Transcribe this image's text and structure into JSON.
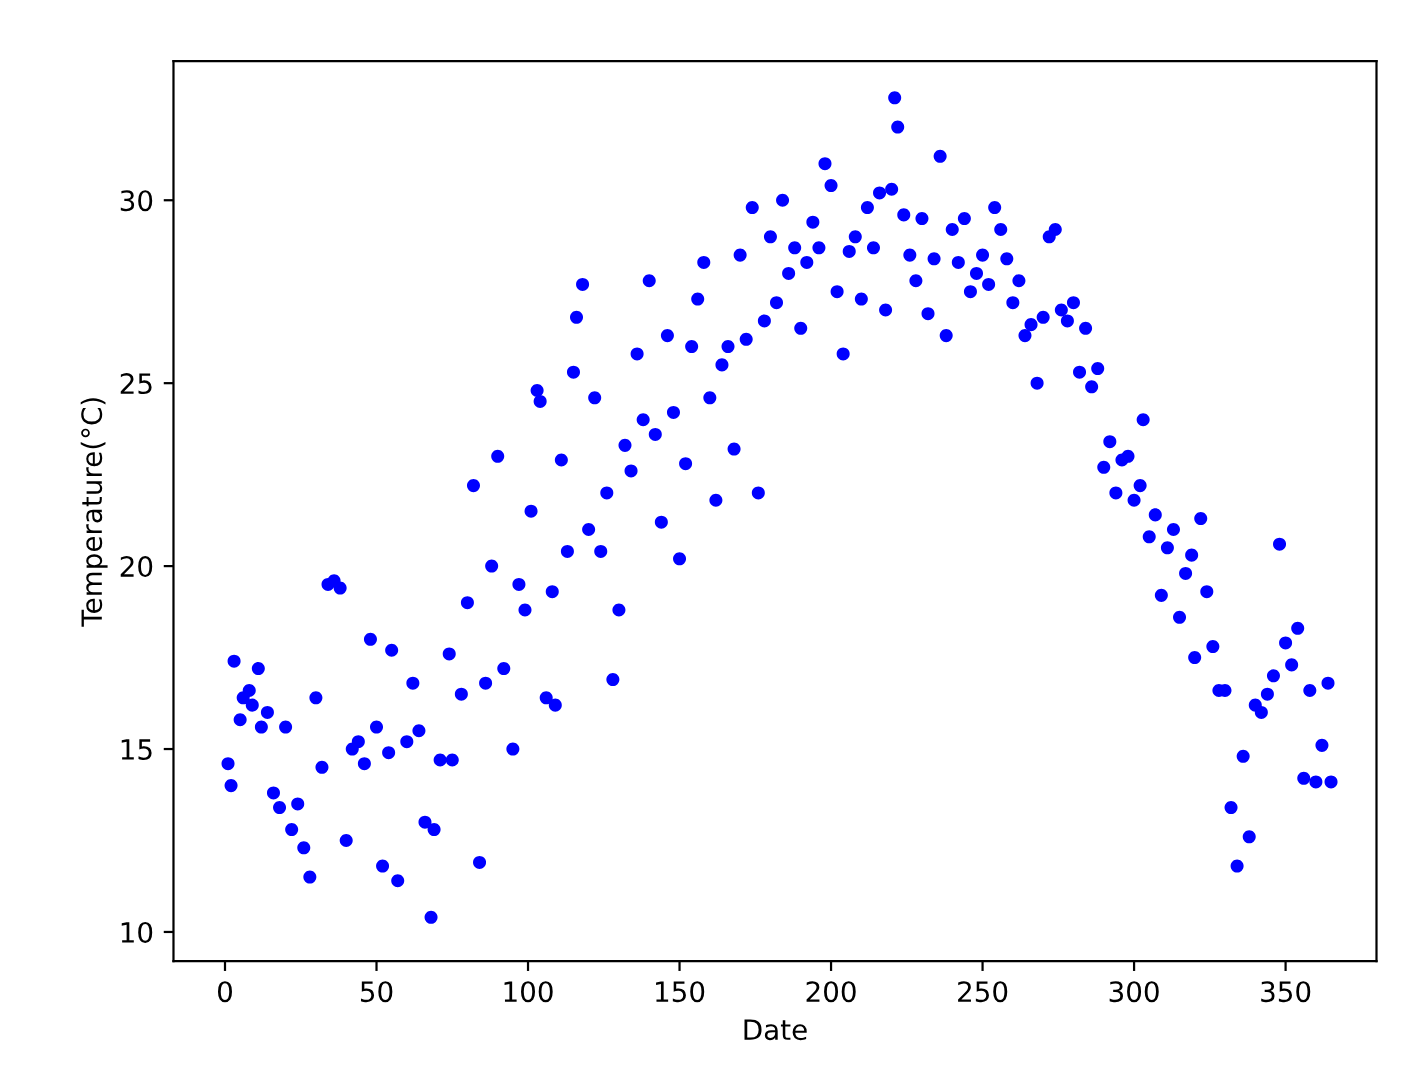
{
  "chart_data": {
    "type": "scatter",
    "xlabel": "Date",
    "ylabel": "Temperature(°C)",
    "color": "#0000ff",
    "marker": "circle",
    "grid": false,
    "x": [
      1,
      2,
      3,
      5,
      6,
      8,
      9,
      11,
      12,
      14,
      16,
      18,
      20,
      22,
      24,
      26,
      28,
      30,
      32,
      34,
      36,
      38,
      40,
      42,
      44,
      46,
      48,
      50,
      52,
      54,
      55,
      57,
      60,
      62,
      64,
      66,
      68,
      69,
      71,
      74,
      75,
      78,
      80,
      82,
      84,
      86,
      88,
      90,
      92,
      95,
      97,
      99,
      101,
      103,
      104,
      106,
      108,
      109,
      111,
      113,
      115,
      116,
      118,
      120,
      122,
      124,
      126,
      128,
      130,
      132,
      134,
      136,
      138,
      140,
      142,
      144,
      146,
      148,
      150,
      152,
      154,
      156,
      158,
      160,
      162,
      164,
      166,
      168,
      170,
      172,
      174,
      176,
      178,
      180,
      182,
      184,
      186,
      188,
      190,
      192,
      194,
      196,
      198,
      200,
      202,
      204,
      206,
      208,
      210,
      212,
      214,
      216,
      218,
      220,
      221,
      222,
      224,
      226,
      228,
      230,
      232,
      234,
      236,
      238,
      240,
      242,
      244,
      246,
      248,
      250,
      252,
      254,
      256,
      258,
      260,
      262,
      264,
      266,
      268,
      270,
      272,
      274,
      276,
      278,
      280,
      282,
      284,
      286,
      288,
      290,
      292,
      294,
      296,
      298,
      300,
      302,
      303,
      305,
      307,
      309,
      311,
      313,
      315,
      317,
      319,
      320,
      322,
      324,
      326,
      328,
      330,
      332,
      334,
      336,
      338,
      340,
      342,
      344,
      346,
      348,
      350,
      352,
      354,
      356,
      358,
      360,
      362,
      364,
      365
    ],
    "values": [
      14.6,
      14.0,
      17.4,
      15.8,
      16.4,
      16.6,
      16.2,
      17.2,
      15.6,
      16.0,
      13.8,
      13.4,
      15.6,
      12.8,
      13.5,
      12.3,
      11.5,
      16.4,
      14.5,
      19.5,
      19.6,
      19.4,
      12.5,
      15.0,
      15.2,
      14.6,
      18.0,
      15.6,
      11.8,
      14.9,
      17.7,
      11.4,
      15.2,
      16.8,
      15.5,
      13.0,
      10.4,
      12.8,
      14.7,
      17.6,
      14.7,
      16.5,
      19.0,
      22.2,
      11.9,
      16.8,
      20.0,
      23.0,
      17.2,
      15.0,
      19.5,
      18.8,
      21.5,
      24.8,
      24.5,
      16.4,
      19.3,
      16.2,
      22.9,
      20.4,
      25.3,
      26.8,
      27.7,
      21.0,
      24.6,
      20.4,
      22.0,
      16.9,
      18.8,
      23.3,
      22.6,
      25.8,
      24.0,
      27.8,
      23.6,
      21.2,
      26.3,
      24.2,
      20.2,
      22.8,
      26.0,
      27.3,
      28.3,
      24.6,
      21.8,
      25.5,
      26.0,
      23.2,
      28.5,
      26.2,
      29.8,
      22.0,
      26.7,
      29.0,
      27.2,
      30.0,
      28.0,
      28.7,
      26.5,
      28.3,
      29.4,
      28.7,
      31.0,
      30.4,
      27.5,
      25.8,
      28.6,
      29.0,
      27.3,
      29.8,
      28.7,
      30.2,
      27.0,
      30.3,
      32.8,
      32.0,
      29.6,
      28.5,
      27.8,
      29.5,
      26.9,
      28.4,
      31.2,
      26.3,
      29.2,
      28.3,
      29.5,
      27.5,
      28.0,
      28.5,
      27.7,
      29.8,
      29.2,
      28.4,
      27.2,
      27.8,
      26.3,
      26.6,
      25.0,
      26.8,
      29.0,
      29.2,
      27.0,
      26.7,
      27.2,
      25.3,
      26.5,
      24.9,
      25.4,
      22.7,
      23.4,
      22.0,
      22.9,
      23.0,
      21.8,
      22.2,
      24.0,
      20.8,
      21.4,
      19.2,
      20.5,
      21.0,
      18.6,
      19.8,
      20.3,
      17.5,
      21.3,
      19.3,
      17.8,
      16.6,
      16.6,
      13.4,
      11.8,
      14.8,
      12.6,
      16.2,
      16.0,
      16.5,
      17.0,
      20.6,
      17.9,
      17.3,
      18.3,
      14.2,
      16.6,
      14.1,
      15.1,
      16.8,
      14.1
    ],
    "xlim": [
      -17,
      380
    ],
    "ylim": [
      9.2,
      33.8
    ],
    "xticks": [
      0,
      50,
      100,
      150,
      200,
      250,
      300,
      350
    ],
    "yticks": [
      10,
      15,
      20,
      25,
      30
    ]
  }
}
